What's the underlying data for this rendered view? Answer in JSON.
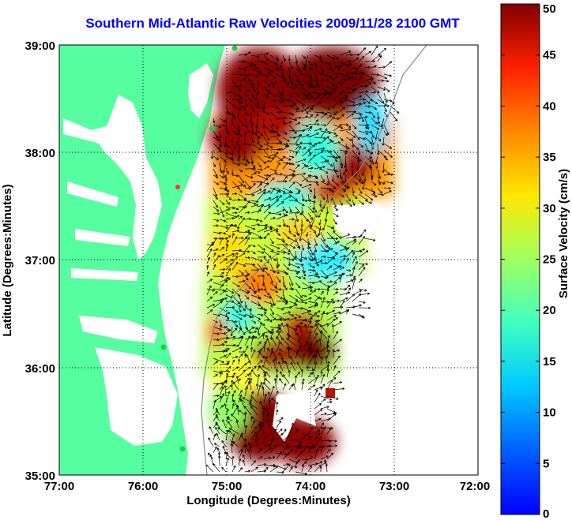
{
  "title": "Southern Mid-Atlantic Raw Velocities 2009/11/28 2100 GMT",
  "axes": {
    "xlabel": "Longitude (Degrees:Minutes)",
    "ylabel": "Latitude (Degrees:Minutes)",
    "x_ticks": [
      "77:00",
      "76:00",
      "75:00",
      "74:00",
      "73:00",
      "72:00"
    ],
    "y_ticks": [
      "39:00",
      "38:00",
      "37:00",
      "36:00",
      "35:00"
    ],
    "lon_range": [
      -77,
      -72
    ],
    "lat_range": [
      35,
      39
    ]
  },
  "colorbar": {
    "label": "Surface Velocity (cm/s)",
    "ticks": [
      "0",
      "5",
      "10",
      "15",
      "20",
      "25",
      "30",
      "35",
      "40",
      "45",
      "50"
    ],
    "range": [
      0,
      50
    ],
    "colormap": "jet"
  },
  "colors": {
    "title": "#0000ff",
    "land": "#55ff9f",
    "water": "#ffffff",
    "grid": "#000000",
    "station_marker": "#22cc44",
    "highlight_marker": "#ff3333"
  }
}
